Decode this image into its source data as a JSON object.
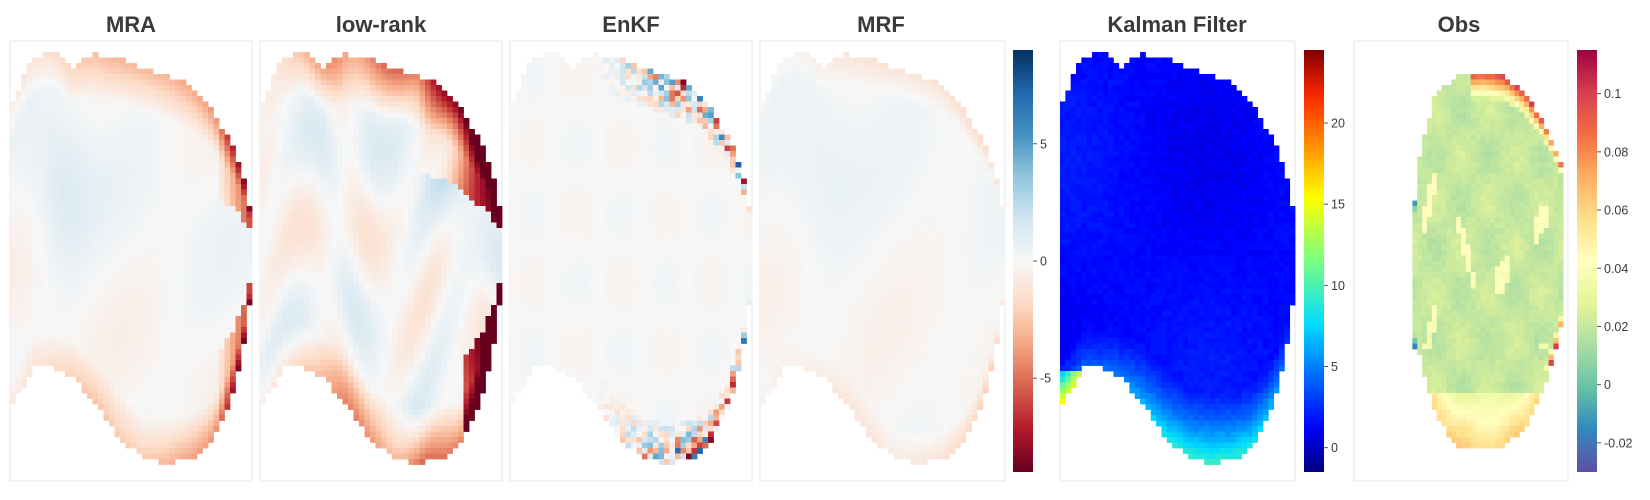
{
  "chart_data": [
    {
      "type": "heatmap",
      "title": "MRA",
      "colormap": "RdBu",
      "clim": [
        -9,
        9
      ]
    },
    {
      "type": "heatmap",
      "title": "low-rank",
      "colormap": "RdBu",
      "clim": [
        -9,
        9
      ]
    },
    {
      "type": "heatmap",
      "title": "EnKF",
      "colormap": "RdBu",
      "clim": [
        -9,
        9
      ]
    },
    {
      "type": "heatmap",
      "title": "MRF",
      "colormap": "RdBu",
      "clim": [
        -9,
        9
      ],
      "colorbar": {
        "ticks": [
          "5",
          "0",
          "-5"
        ],
        "tick_values": [
          5,
          0,
          -5
        ]
      }
    },
    {
      "type": "heatmap",
      "title": "Kalman Filter",
      "colormap": "jet",
      "clim": [
        -1.5,
        24.5
      ],
      "colorbar": {
        "ticks": [
          "20",
          "15",
          "10",
          "5",
          "0"
        ],
        "tick_values": [
          20,
          15,
          10,
          5,
          0
        ]
      }
    },
    {
      "type": "heatmap",
      "title": "Obs",
      "colormap": "Spectral_r",
      "clim": [
        -0.03,
        0.115
      ],
      "colorbar": {
        "ticks": [
          "0.1",
          "0.08",
          "0.06",
          "0.04",
          "0.02",
          "0",
          "-0.02"
        ],
        "tick_values": [
          0.1,
          0.08,
          0.06,
          0.04,
          0.02,
          0,
          -0.02
        ]
      }
    }
  ]
}
